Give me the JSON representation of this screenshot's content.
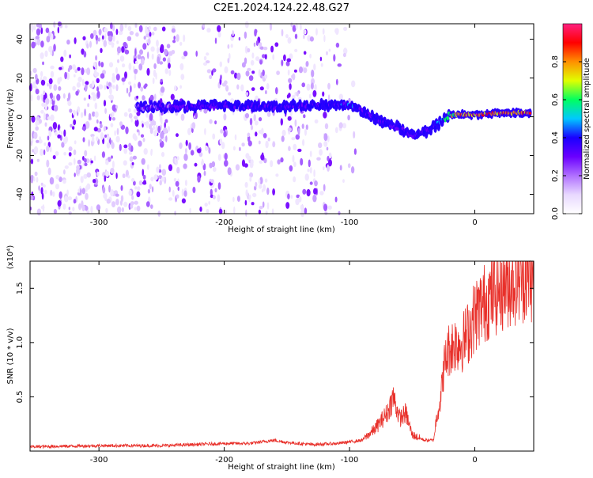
{
  "title": "C2E1.2024.124.22.48.G27",
  "chart_data": [
    {
      "type": "heatmap",
      "xlabel": "Height of straight line (km)",
      "ylabel": "Frequency (Hz)",
      "xlim": [
        -355,
        47
      ],
      "ylim": [
        -50,
        48
      ],
      "x_ticks": [
        -300,
        -200,
        -100,
        0
      ],
      "x_tick_labels": [
        "-300",
        "-200",
        "-100",
        "0"
      ],
      "y_ticks": [
        40,
        20,
        0,
        -20,
        -40
      ],
      "y_tick_labels": [
        "40",
        "20",
        "0",
        "-20",
        "-40"
      ],
      "colorbar": {
        "label": "Normalized spectral amplitude",
        "range": [
          0,
          1
        ],
        "ticks": [
          0,
          0.2,
          0.4,
          0.6,
          0.8
        ],
        "tick_labels": [
          "0.0",
          "0.2",
          "0.4",
          "0.6",
          "0.8"
        ],
        "colormap": [
          "#ffffff",
          "#e8d8ff",
          "#b070ff",
          "#6a00ff",
          "#1a00ff",
          "#00c8ff",
          "#00ff60",
          "#e0ff00",
          "#ff9000",
          "#ff0000",
          "#ff2080"
        ]
      },
      "ridge": {
        "x": [
          -270,
          -240,
          -200,
          -160,
          -120,
          -100,
          -90,
          -75,
          -60,
          -50,
          -40,
          -30,
          -20,
          0,
          20,
          45
        ],
        "frequency": [
          5,
          5,
          6,
          5,
          6,
          6,
          3,
          -2,
          -6,
          -10,
          -8,
          -4,
          1,
          1,
          2,
          2
        ],
        "peak_amplitude": [
          0.3,
          0.35,
          0.4,
          0.42,
          0.4,
          0.45,
          0.42,
          0.4,
          0.38,
          0.35,
          0.4,
          0.5,
          0.75,
          0.95,
          0.9,
          0.9
        ]
      },
      "grid": false
    },
    {
      "type": "line",
      "xlabel": "Height of straight line (km)",
      "ylabel": "SNR (10 * v/v)",
      "y_multiplier": "(x10⁴)",
      "xlim": [
        -355,
        47
      ],
      "ylim": [
        0,
        1.75
      ],
      "x_ticks": [
        -300,
        -200,
        -100,
        0
      ],
      "x_tick_labels": [
        "-300",
        "-200",
        "-100",
        "0"
      ],
      "y_ticks": [
        0.5,
        1.0,
        1.5
      ],
      "y_tick_labels": [
        "0.5",
        "1.0",
        "1.5"
      ],
      "series": [
        {
          "color": "#e8302a",
          "x": [
            -355,
            -300,
            -250,
            -200,
            -180,
            -160,
            -150,
            -130,
            -110,
            -90,
            -80,
            -70,
            -65,
            -60,
            -55,
            -50,
            -40,
            -33,
            -30,
            -27,
            -25,
            -22,
            -20,
            -15,
            -10,
            -5,
            0,
            10,
            20,
            30,
            40,
            47
          ],
          "y": [
            0.04,
            0.05,
            0.05,
            0.07,
            0.07,
            0.1,
            0.08,
            0.06,
            0.07,
            0.1,
            0.2,
            0.35,
            0.5,
            0.3,
            0.35,
            0.15,
            0.1,
            0.1,
            0.35,
            0.5,
            0.75,
            0.9,
            0.95,
            1.0,
            1.0,
            1.1,
            1.25,
            1.4,
            1.5,
            1.58,
            1.63,
            1.62
          ]
        }
      ],
      "grid": false
    }
  ]
}
